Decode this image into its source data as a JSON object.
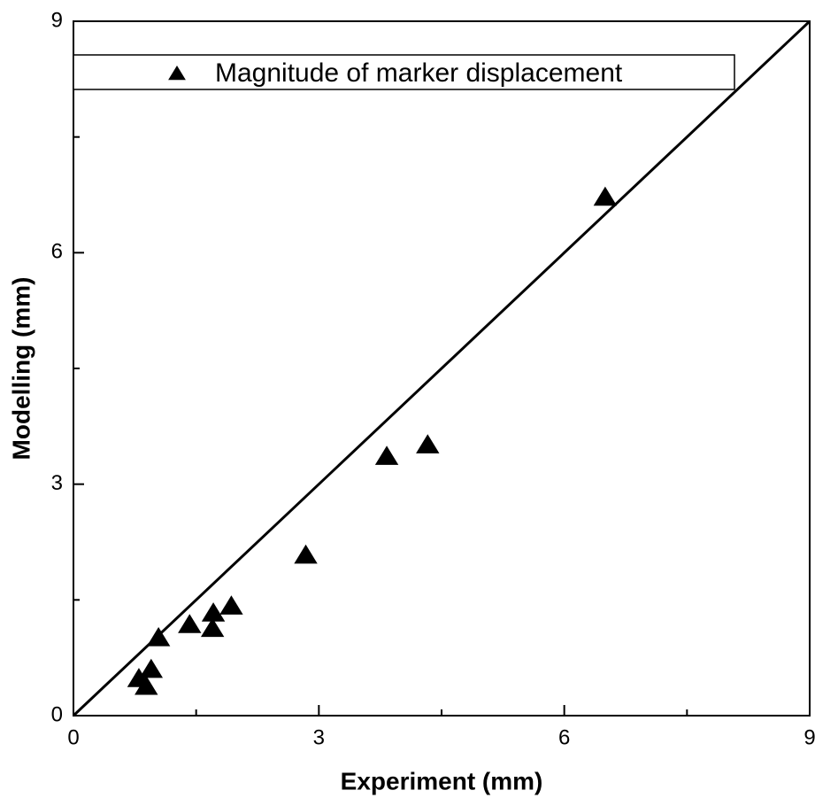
{
  "chart_data": {
    "type": "scatter",
    "xlabel": "Experiment (mm)",
    "ylabel": "Modelling (mm)",
    "xlim": [
      0,
      9
    ],
    "ylim": [
      0,
      9
    ],
    "xticks": [
      0,
      3,
      6,
      9
    ],
    "yticks": [
      0,
      3,
      6,
      9
    ],
    "xminorticks": [
      1.5,
      4.5,
      7.5
    ],
    "yminorticks": [
      1.5,
      4.5,
      7.5
    ],
    "legend": "top",
    "series": [
      {
        "name": "Magnitude of marker displacement",
        "color": "#000000",
        "x": [
          6.5,
          4.33,
          3.83,
          2.84,
          1.93,
          1.71,
          1.7,
          1.42,
          1.04,
          0.95,
          0.8,
          0.89
        ],
        "values": [
          6.72,
          3.51,
          3.36,
          2.08,
          1.42,
          1.33,
          1.13,
          1.18,
          1.01,
          0.6,
          0.48,
          0.38
        ]
      }
    ]
  }
}
